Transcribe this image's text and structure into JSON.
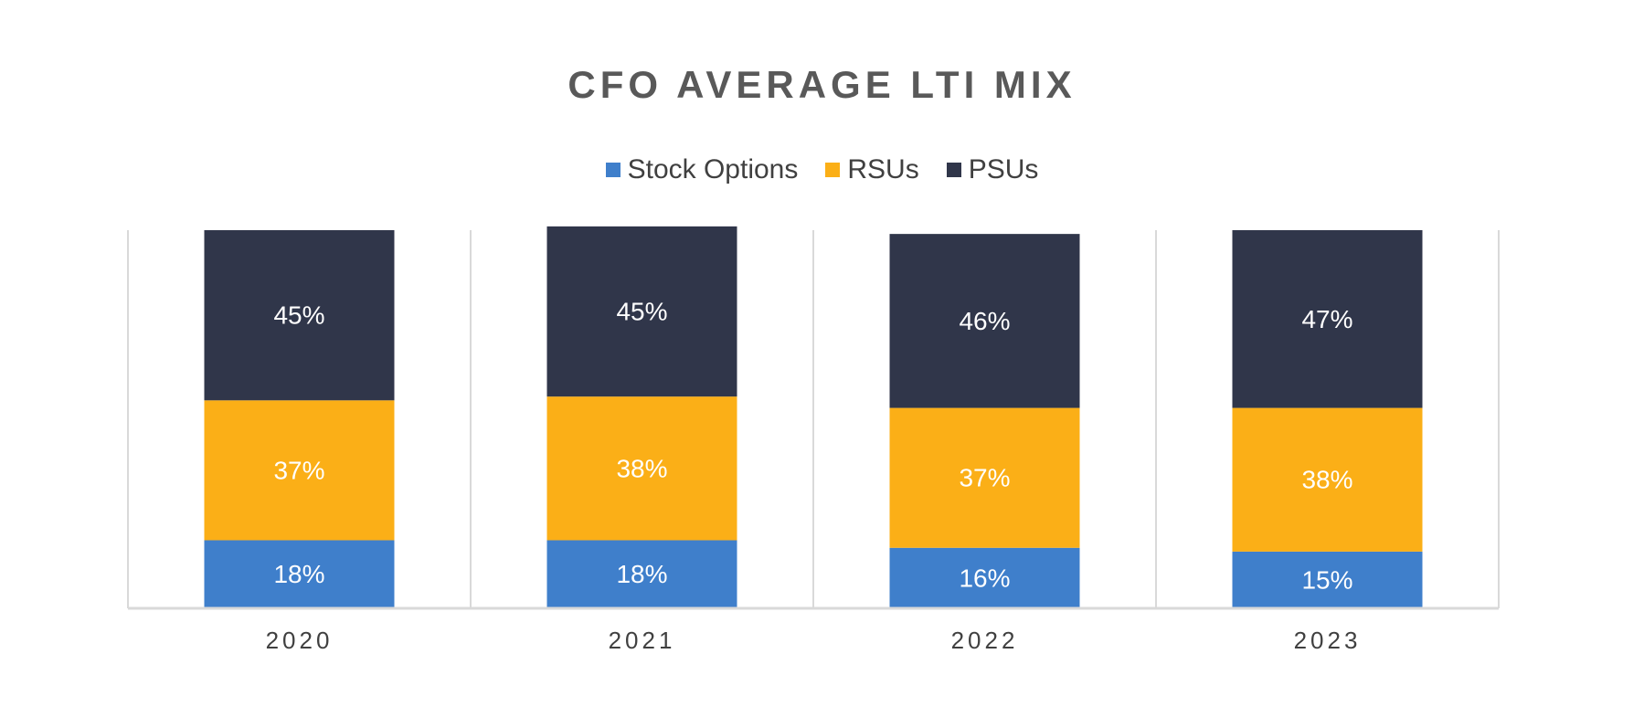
{
  "chart_data": {
    "type": "bar",
    "stacked": true,
    "title": "CFO AVERAGE LTI MIX",
    "categories": [
      "2020",
      "2021",
      "2022",
      "2023"
    ],
    "series": [
      {
        "name": "Stock Options",
        "color": "#3F7FCB",
        "values": [
          18,
          18,
          16,
          15
        ],
        "labels": [
          "18%",
          "18%",
          "16%",
          "15%"
        ]
      },
      {
        "name": "RSUs",
        "color": "#FBAF17",
        "values": [
          37,
          38,
          37,
          38
        ],
        "labels": [
          "37%",
          "38%",
          "37%",
          "38%"
        ]
      },
      {
        "name": "PSUs",
        "color": "#30364A",
        "values": [
          45,
          45,
          46,
          47
        ],
        "labels": [
          "45%",
          "45%",
          "46%",
          "47%"
        ]
      }
    ],
    "ylim": [
      0,
      100
    ],
    "grid": "vertical separators",
    "legend_position": "top"
  }
}
